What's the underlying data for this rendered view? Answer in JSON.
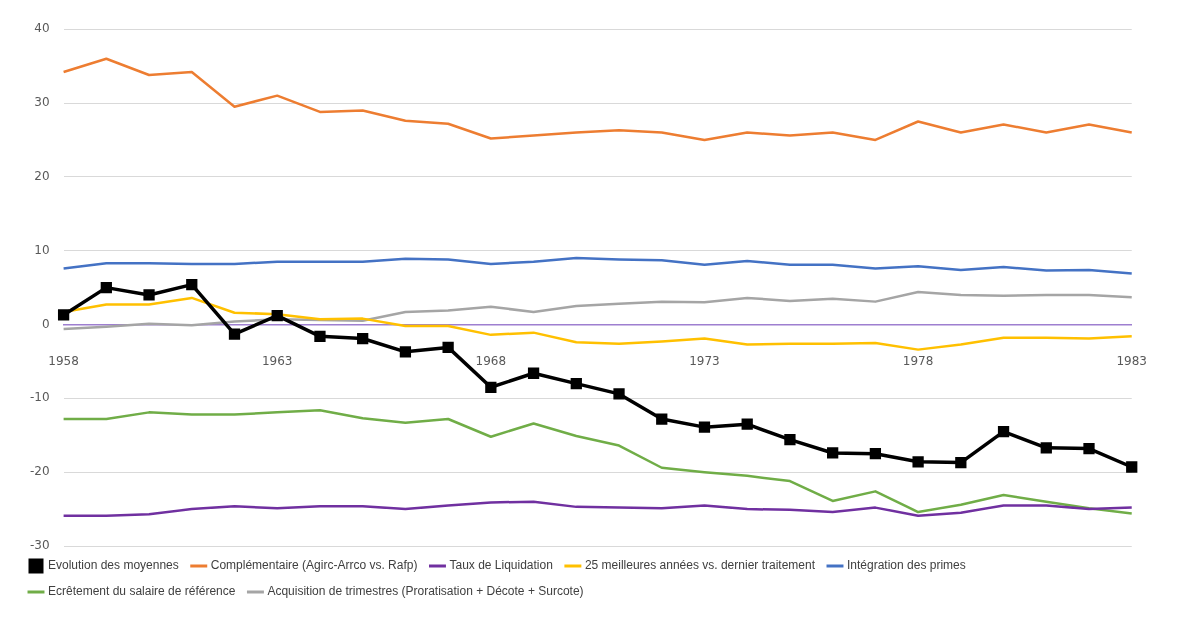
{
  "chart_data": {
    "type": "line",
    "categories": [
      "1958",
      null,
      null,
      null,
      null,
      "1963",
      null,
      null,
      null,
      null,
      "1968",
      null,
      null,
      null,
      null,
      "1973",
      null,
      null,
      null,
      null,
      "1978",
      null,
      null,
      null,
      null,
      "1983"
    ],
    "ylim": [
      -30,
      40
    ],
    "yticks": [
      -30,
      -20,
      -10,
      0,
      10,
      20,
      30,
      40
    ],
    "grid": "y",
    "legend": "bottom",
    "series": [
      {
        "name": "Evolution des moyennes",
        "color": "#000000",
        "marker": "square",
        "values": [
          1.3,
          5.0,
          4.0,
          5.4,
          -1.3,
          1.2,
          -1.6,
          -1.9,
          -3.7,
          -3.1,
          -8.5,
          -6.6,
          -8.0,
          -9.4,
          -12.8,
          -13.9,
          -13.5,
          -15.6,
          -17.4,
          -17.5,
          -18.6,
          -18.7,
          -14.5,
          -16.7,
          -16.8,
          -19.3
        ]
      },
      {
        "name": "Complémentaire (Agirc-Arrco vs. Rafp)",
        "color": "#ed7d31",
        "marker": "none",
        "values": [
          34.2,
          36.0,
          33.8,
          34.2,
          29.5,
          31.0,
          28.8,
          29.0,
          27.6,
          27.2,
          25.2,
          25.6,
          26.0,
          26.3,
          26.0,
          25.0,
          26.0,
          25.6,
          26.0,
          25.0,
          27.5,
          26.0,
          27.1,
          26.0,
          27.1,
          26.0
        ]
      },
      {
        "name": "Taux de Liquidation",
        "color": "#7030a0",
        "marker": "none",
        "values": [
          -25.9,
          -25.9,
          -25.7,
          -25.0,
          -24.6,
          -24.9,
          -24.6,
          -24.6,
          -25.0,
          -24.5,
          -24.1,
          -24.0,
          -24.7,
          -24.8,
          -24.9,
          -24.5,
          -25.0,
          -25.1,
          -25.4,
          -24.8,
          -25.9,
          -25.5,
          -24.5,
          -24.5,
          -25.0,
          -24.8
        ]
      },
      {
        "name": "25 meilleures années vs. dernier traitement",
        "color": "#ffc000",
        "marker": "none",
        "values": [
          1.7,
          2.7,
          2.7,
          3.6,
          1.6,
          1.4,
          0.7,
          0.8,
          -0.2,
          -0.2,
          -1.4,
          -1.1,
          -2.4,
          -2.6,
          -2.3,
          -1.9,
          -2.7,
          -2.6,
          -2.6,
          -2.5,
          -3.4,
          -2.7,
          -1.8,
          -1.8,
          -1.9,
          -1.6
        ]
      },
      {
        "name": "Intégration des primes",
        "color": "#4472c4",
        "marker": "none",
        "values": [
          7.6,
          8.3,
          8.3,
          8.2,
          8.2,
          8.5,
          8.5,
          8.5,
          8.9,
          8.8,
          8.2,
          8.5,
          9.0,
          8.8,
          8.7,
          8.1,
          8.6,
          8.1,
          8.1,
          7.6,
          7.9,
          7.4,
          7.8,
          7.3,
          7.4,
          6.9
        ]
      },
      {
        "name": "Ecrêtement du salaire de référence",
        "color": "#70ad47",
        "marker": "none",
        "values": [
          -12.8,
          -12.8,
          -11.9,
          -12.2,
          -12.2,
          -11.9,
          -11.6,
          -12.7,
          -13.3,
          -12.8,
          -15.2,
          -13.4,
          -15.1,
          -16.4,
          -19.4,
          -20.0,
          -20.5,
          -21.2,
          -23.9,
          -22.6,
          -25.4,
          -24.4,
          -23.1,
          -24.0,
          -24.9,
          -25.6
        ]
      },
      {
        "name": "Acquisition de trimestres (Proratisation + Décote + Surcote)",
        "color": "#a5a5a5",
        "marker": "none",
        "values": [
          -0.6,
          -0.3,
          0.1,
          -0.1,
          0.4,
          0.7,
          0.6,
          0.5,
          1.7,
          1.9,
          2.4,
          1.7,
          2.5,
          2.8,
          3.1,
          3.0,
          3.6,
          3.2,
          3.5,
          3.1,
          4.4,
          4.0,
          3.9,
          4.0,
          4.0,
          3.7
        ]
      }
    ]
  }
}
